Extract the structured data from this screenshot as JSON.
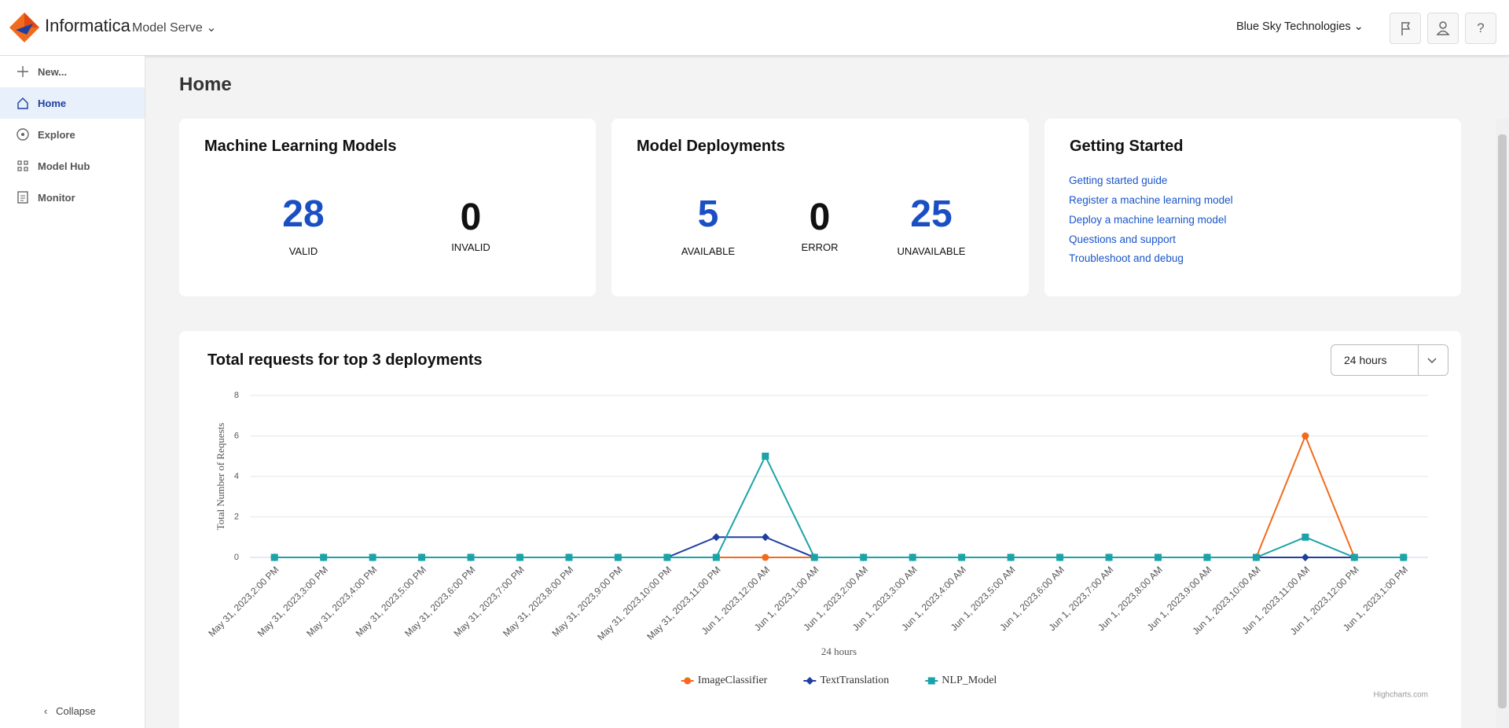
{
  "header": {
    "brand": "Informatica",
    "product": "Model Serve",
    "org": "Blue Sky Technologies"
  },
  "sidebar": {
    "items": [
      "New...",
      "Home",
      "Explore",
      "Model Hub",
      "Monitor"
    ],
    "collapse": "Collapse"
  },
  "page_title": "Home",
  "cards": [
    {
      "title": "Machine Learning Models",
      "stats": [
        {
          "value": "28",
          "label": "VALID"
        },
        {
          "value": "0",
          "label": "INVALID"
        }
      ]
    },
    {
      "title": "Model Deployments",
      "stats": [
        {
          "value": "5",
          "label": "AVAILABLE"
        },
        {
          "value": "0",
          "label": "ERROR"
        },
        {
          "value": "25",
          "label": "UNAVAILABLE"
        }
      ]
    }
  ],
  "getting_started": {
    "title": "Getting Started",
    "links": [
      "Getting started guide",
      "Register a machine learning model",
      "Deploy a machine learning model",
      "Questions and support",
      "Troubleshoot and debug"
    ]
  },
  "chart_data": {
    "type": "line",
    "title": "Total requests for top 3 deployments",
    "dropdown": "24 hours",
    "credits": "Highcharts.com",
    "xlabel": "24 hours",
    "ylabel": "Total Number of Requests",
    "categories": [
      "May 31, 2023,2:00 PM",
      "May 31, 2023,3:00 PM",
      "May 31, 2023,4:00 PM",
      "May 31, 2023,5:00 PM",
      "May 31, 2023,6:00 PM",
      "May 31, 2023,7:00 PM",
      "May 31, 2023,8:00 PM",
      "May 31, 2023,9:00 PM",
      "May 31, 2023,10:00 PM",
      "May 31, 2023,11:00 PM",
      "Jun 1, 2023,12:00 AM",
      "Jun 1, 2023,1:00 AM",
      "Jun 1, 2023,2:00 AM",
      "Jun 1, 2023,3:00 AM",
      "Jun 1, 2023,4:00 AM",
      "Jun 1, 2023,5:00 AM",
      "Jun 1, 2023,6:00 AM",
      "Jun 1, 2023,7:00 AM",
      "Jun 1, 2023,8:00 AM",
      "Jun 1, 2023,9:00 AM",
      "Jun 1, 2023,10:00 AM",
      "Jun 1, 2023,11:00 AM",
      "Jun 1, 2023,12:00 PM",
      "Jun 1, 2023,1:00 PM"
    ],
    "series": [
      {
        "name": "ImageClassifier",
        "color": "#f26b1d",
        "marker": "circle",
        "values": [
          0,
          0,
          0,
          0,
          0,
          0,
          0,
          0,
          0,
          0,
          0,
          0,
          0,
          0,
          0,
          0,
          0,
          0,
          0,
          0,
          0,
          6,
          0,
          0
        ]
      },
      {
        "name": "TextTranslation",
        "color": "#1f3f9f",
        "marker": "diamond",
        "values": [
          0,
          0,
          0,
          0,
          0,
          0,
          0,
          0,
          0,
          1,
          1,
          0,
          0,
          0,
          0,
          0,
          0,
          0,
          0,
          0,
          0,
          0,
          0,
          0
        ]
      },
      {
        "name": "NLP_Model",
        "color": "#1aa3a8",
        "marker": "square",
        "values": [
          0,
          0,
          0,
          0,
          0,
          0,
          0,
          0,
          0,
          0,
          5,
          0,
          0,
          0,
          0,
          0,
          0,
          0,
          0,
          0,
          0,
          1,
          0,
          0
        ]
      }
    ],
    "ylim": [
      0,
      8
    ],
    "yticks": [
      0,
      2,
      4,
      6,
      8
    ],
    "grid": true,
    "legend": "bottom"
  }
}
